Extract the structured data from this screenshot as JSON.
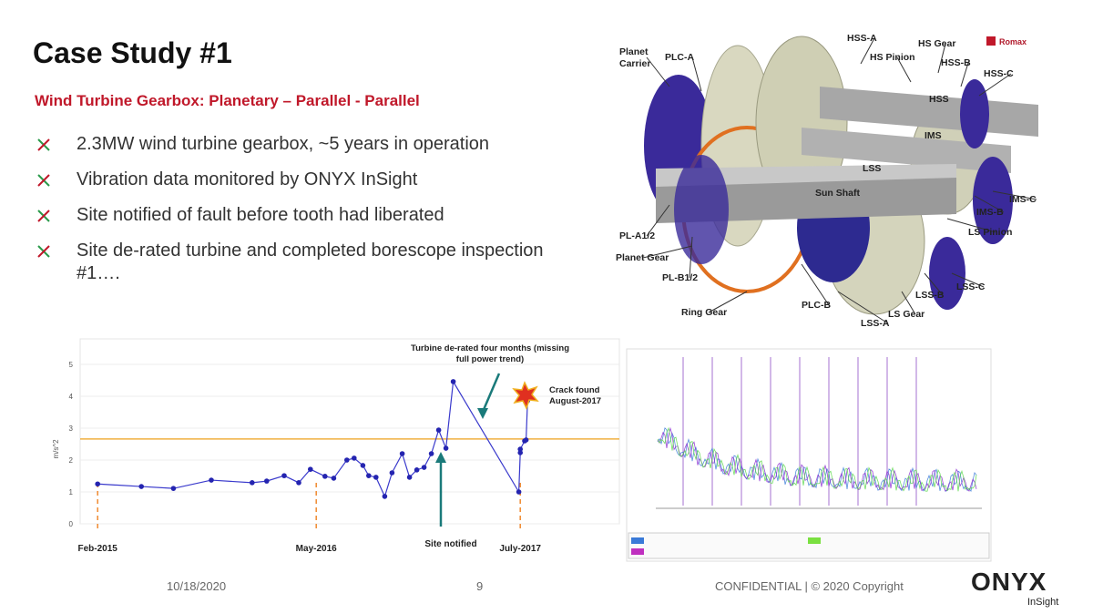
{
  "header": {
    "title": "Case Study #1",
    "subtitle": "Wind Turbine Gearbox: Planetary – Parallel - Parallel"
  },
  "bullets": [
    "2.3MW wind turbine gearbox, ~5 years in operation",
    "Vibration data monitored by ONYX InSight",
    "Site notified of fault before tooth had liberated",
    "Site de-rated turbine and completed borescope inspection #1…."
  ],
  "diagram": {
    "logo": "Romax",
    "labels": [
      "Planet Carrier",
      "PLC-A",
      "HSS-A",
      "HS Gear",
      "HS Pinion",
      "HSS-B",
      "HSS-C",
      "HSS",
      "IMS",
      "LSS",
      "Sun Shaft",
      "IMS-C",
      "IMS-B",
      "LS Pinion",
      "PL-A1/2",
      "Planet Gear",
      "PL-B1/2",
      "Ring Gear",
      "PLC-B",
      "LSS-A",
      "LS Gear",
      "LSS-B",
      "LSS-C"
    ]
  },
  "chart_data": {
    "type": "line",
    "y_label": "m/s^2",
    "x": [
      0,
      3,
      5.2,
      7.8,
      10.6,
      11.6,
      12.8,
      13.8,
      14.6,
      15.6,
      16.2,
      17.1,
      17.6,
      18.2,
      18.6,
      19.1,
      19.7,
      20.2,
      20.9,
      21.4,
      21.9,
      22.4,
      22.9,
      23.4,
      23.9,
      24.4,
      28.9,
      29.0,
      29.0,
      29.3,
      29.4,
      29.5
    ],
    "values": [
      1.25,
      1.17,
      1.11,
      1.37,
      1.29,
      1.34,
      1.51,
      1.29,
      1.71,
      1.49,
      1.43,
      2.0,
      2.06,
      1.83,
      1.51,
      1.46,
      0.86,
      1.6,
      2.2,
      1.46,
      1.69,
      1.77,
      2.2,
      2.94,
      2.37,
      4.46,
      1.0,
      2.23,
      2.34,
      2.6,
      2.63,
      3.86
    ],
    "color": "#3a3acc",
    "threshold": 2.66,
    "threshold_color": "#f0b040",
    "xlim": [
      -1.2,
      35.8
    ],
    "xticks": [
      {
        "value": 0,
        "label": "Feb-2015"
      },
      {
        "value": 15,
        "label": "May-2016"
      },
      {
        "value": 29,
        "label": "July-2017"
      }
    ],
    "ylim": [
      0,
      5.8
    ],
    "yticks": [
      0,
      1,
      2,
      3,
      4,
      5
    ],
    "grid": true,
    "annotations": [
      "Turbine de-rated four months (missing full power trend)",
      "Crack found August-2017",
      "Site notified"
    ]
  },
  "footer": {
    "date": "10/18/2020",
    "page": "9",
    "confidential": "CONFIDENTIAL | © 2020 Copyright",
    "brand": "ONYX",
    "brand_sub": "InSight"
  }
}
